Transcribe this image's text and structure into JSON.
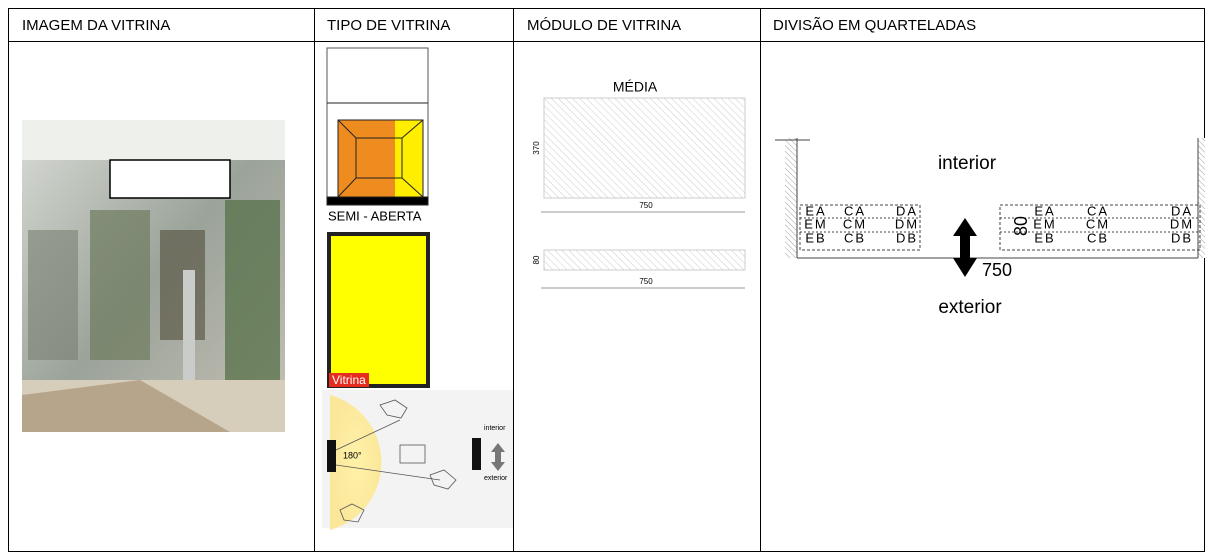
{
  "table": {
    "headers": [
      "IMAGEM DA VITRINA",
      "TIPO DE VITRINA",
      "MÓDULO DE VITRINA",
      "DIVISÃO EM QUARTELADAS"
    ]
  },
  "type_cell": {
    "label": "SEMI - ABERTA",
    "tag": "Vitrina",
    "angle": "180°",
    "interior": "interior",
    "exterior": "exterior"
  },
  "module_cell": {
    "title": "MÉDIA",
    "height": "370",
    "width": "750",
    "depth": "80",
    "width2": "750"
  },
  "division_cell": {
    "interior": "interior",
    "exterior": "exterior",
    "width": "750",
    "depth": "80",
    "left_grid": [
      [
        "EA",
        "CA",
        "DA"
      ],
      [
        "EM",
        "CM",
        "DM"
      ],
      [
        "EB",
        "CB",
        "DB"
      ]
    ],
    "right_grid": [
      [
        "EA",
        "CA",
        "DA"
      ],
      [
        "EM",
        "CM",
        "DM"
      ],
      [
        "EB",
        "CB",
        "DB"
      ]
    ]
  }
}
